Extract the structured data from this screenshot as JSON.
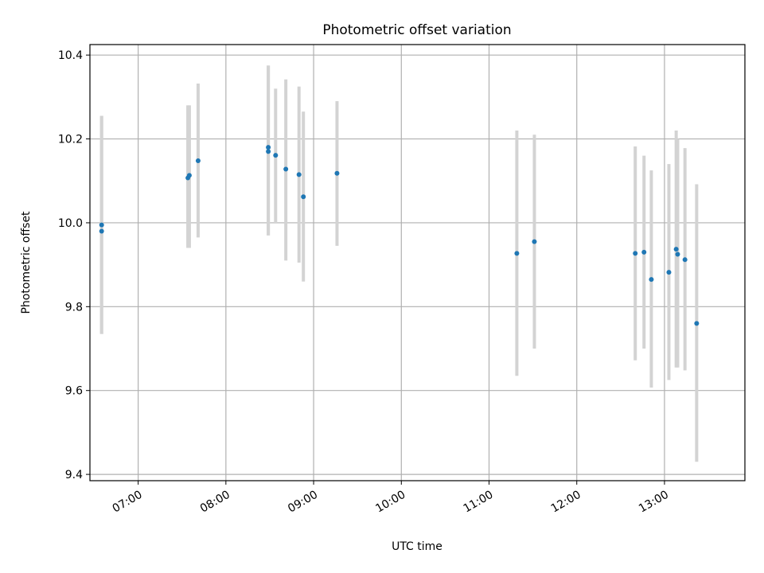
{
  "chart_data": {
    "type": "scatter",
    "title": "Photometric offset variation",
    "xlabel": "UTC time",
    "ylabel": "Photometric offset",
    "x_axis": {
      "min": "06:27",
      "max": "13:55",
      "ticks": [
        "07:00",
        "08:00",
        "09:00",
        "10:00",
        "11:00",
        "12:00",
        "13:00"
      ]
    },
    "y_axis": {
      "min": 9.385,
      "max": 10.425,
      "ticks": [
        9.4,
        9.6,
        9.8,
        10.0,
        10.2,
        10.4
      ],
      "tick_labels": [
        "9.4",
        "9.6",
        "9.8",
        "10.0",
        "10.2",
        "10.4"
      ]
    },
    "grid": true,
    "colors": {
      "points": "#1f77b4",
      "errorbars": "#d3d3d3",
      "grid": "#b0b0b0"
    },
    "series": [
      {
        "points": [
          {
            "x": "06:35",
            "y": 9.98,
            "err_low": 9.735,
            "err_high": 10.255
          },
          {
            "x": "06:35",
            "y": 9.995,
            "err_low": 9.735,
            "err_high": 10.255
          },
          {
            "x": "07:34",
            "y": 10.107,
            "err_low": 9.94,
            "err_high": 10.28
          },
          {
            "x": "07:35",
            "y": 10.113,
            "err_low": 9.94,
            "err_high": 10.28
          },
          {
            "x": "07:41",
            "y": 10.148,
            "err_low": 9.965,
            "err_high": 10.332
          },
          {
            "x": "08:29",
            "y": 10.18,
            "err_low": 9.97,
            "err_high": 10.375
          },
          {
            "x": "08:29",
            "y": 10.17,
            "err_low": 9.97,
            "err_high": 10.375
          },
          {
            "x": "08:34",
            "y": 10.161,
            "err_low": 10.0,
            "err_high": 10.32
          },
          {
            "x": "08:41",
            "y": 10.128,
            "err_low": 9.91,
            "err_high": 10.342
          },
          {
            "x": "08:50",
            "y": 10.115,
            "err_low": 9.905,
            "err_high": 10.325
          },
          {
            "x": "08:53",
            "y": 10.062,
            "err_low": 9.86,
            "err_high": 10.265
          },
          {
            "x": "09:16",
            "y": 10.118,
            "err_low": 9.945,
            "err_high": 10.29
          },
          {
            "x": "11:19",
            "y": 9.927,
            "err_low": 9.635,
            "err_high": 10.22
          },
          {
            "x": "11:31",
            "y": 9.955,
            "err_low": 9.7,
            "err_high": 10.21
          },
          {
            "x": "12:40",
            "y": 9.927,
            "err_low": 9.672,
            "err_high": 10.182
          },
          {
            "x": "12:46",
            "y": 9.93,
            "err_low": 9.7,
            "err_high": 10.16
          },
          {
            "x": "12:51",
            "y": 9.865,
            "err_low": 9.607,
            "err_high": 10.125
          },
          {
            "x": "13:03",
            "y": 9.882,
            "err_low": 9.625,
            "err_high": 10.14
          },
          {
            "x": "13:08",
            "y": 9.937,
            "err_low": 9.655,
            "err_high": 10.22
          },
          {
            "x": "13:09",
            "y": 9.925,
            "err_low": 9.655,
            "err_high": 10.2
          },
          {
            "x": "13:14",
            "y": 9.912,
            "err_low": 9.648,
            "err_high": 10.178
          },
          {
            "x": "13:22",
            "y": 9.76,
            "err_low": 9.43,
            "err_high": 10.092
          }
        ]
      }
    ]
  }
}
